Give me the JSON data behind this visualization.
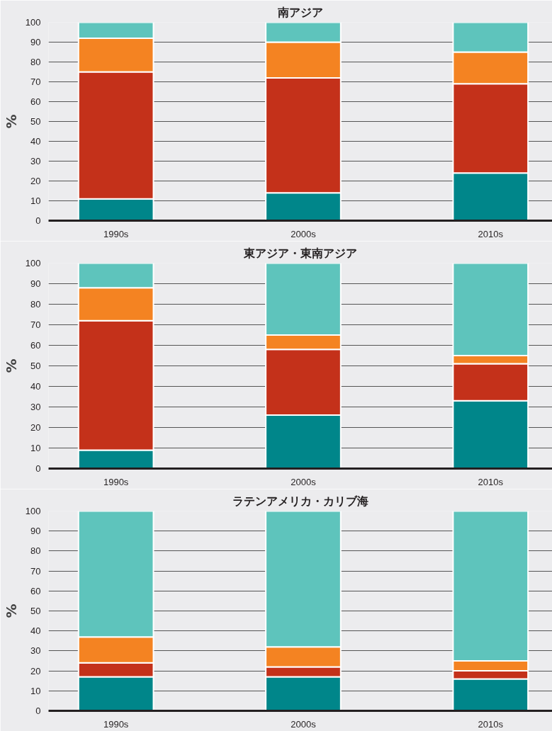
{
  "chart_data": [
    {
      "type": "bar",
      "stacked": true,
      "title": "南アジア",
      "ylabel": "%",
      "categories": [
        "1990s",
        "2000s",
        "2010s"
      ],
      "ylim": [
        0,
        100
      ],
      "yticks": [
        0,
        10,
        20,
        30,
        40,
        50,
        60,
        70,
        80,
        90,
        100
      ],
      "grid": "y",
      "series": [
        {
          "color": "#00868a",
          "values": [
            11,
            14,
            24
          ]
        },
        {
          "color": "#c4311a",
          "values": [
            64,
            58,
            45
          ]
        },
        {
          "color": "#f48322",
          "values": [
            17,
            18,
            16
          ]
        },
        {
          "color": "#5ec4bc",
          "values": [
            8,
            10,
            15
          ]
        }
      ]
    },
    {
      "type": "bar",
      "stacked": true,
      "title": "東アジア・東南アジア",
      "ylabel": "%",
      "categories": [
        "1990s",
        "2000s",
        "2010s"
      ],
      "ylim": [
        0,
        100
      ],
      "yticks": [
        0,
        10,
        20,
        30,
        40,
        50,
        60,
        70,
        80,
        90,
        100
      ],
      "grid": "y",
      "series": [
        {
          "color": "#00868a",
          "values": [
            9,
            26,
            33
          ]
        },
        {
          "color": "#c4311a",
          "values": [
            63,
            32,
            18
          ]
        },
        {
          "color": "#f48322",
          "values": [
            16,
            7,
            4
          ]
        },
        {
          "color": "#5ec4bc",
          "values": [
            12,
            35,
            45
          ]
        }
      ]
    },
    {
      "type": "bar",
      "stacked": true,
      "title": "ラテンアメリカ・カリブ海",
      "ylabel": "%",
      "categories": [
        "1990s",
        "2000s",
        "2010s"
      ],
      "ylim": [
        0,
        100
      ],
      "yticks": [
        0,
        10,
        20,
        30,
        40,
        50,
        60,
        70,
        80,
        90,
        100
      ],
      "grid": "y",
      "series": [
        {
          "color": "#00868a",
          "values": [
            17,
            17,
            16
          ]
        },
        {
          "color": "#c4311a",
          "values": [
            7,
            5,
            4
          ]
        },
        {
          "color": "#f48322",
          "values": [
            13,
            10,
            5
          ]
        },
        {
          "color": "#5ec4bc",
          "values": [
            63,
            68,
            75
          ]
        }
      ]
    }
  ]
}
